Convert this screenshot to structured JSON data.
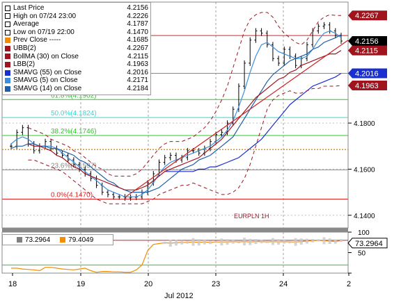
{
  "chart_data": [
    {
      "type": "line",
      "instrument": "EURPLN 1H",
      "xlabel": "Jul 2012",
      "x_tick_labels": [
        "18",
        "19",
        "20",
        "23",
        "24",
        "2"
      ],
      "y_tick_labels": [
        "4.1800",
        "4.1600",
        "4.1400"
      ],
      "ylim": [
        4.1345,
        4.2325
      ],
      "legend": [
        {
          "label": "Last Price",
          "value": "4.2156",
          "color": "#000000"
        },
        {
          "label": "High on 07/24 23:00",
          "value": "4.2226",
          "color": "#000000"
        },
        {
          "label": "Average",
          "value": "4.1787",
          "color": "#000000"
        },
        {
          "label": "Low on 07/19 22:00",
          "value": "4.1470",
          "color": "#000000"
        },
        {
          "label": "Prev Close -----",
          "value": "4.1685",
          "color": "#f28c00"
        },
        {
          "label": "UBB(2)",
          "value": "4.2267",
          "color": "#a0141e"
        },
        {
          "label": "BollMA (30) on Close",
          "value": "4.2115",
          "color": "#a0141e"
        },
        {
          "label": "LBB(2)",
          "value": "4.1963",
          "color": "#a0141e"
        },
        {
          "label": "SMAVG (55) on Close",
          "value": "4.2016",
          "color": "#1a2fd0"
        },
        {
          "label": "SMAVG (5) on Close",
          "value": "4.2171",
          "color": "#3a8fe0"
        },
        {
          "label": "SMAVG (14) on Close",
          "value": "4.2184",
          "color": "#1f5fa8"
        }
      ],
      "fib_levels": [
        {
          "label": "0.0%(4.1470)",
          "value": 4.147,
          "color": "#e02020"
        },
        {
          "label": "23.6%(4.1597)",
          "value": 4.1597,
          "color": "#888888"
        },
        {
          "label": "38.2%(4.1746)",
          "value": 4.1746,
          "color": "#2cc52c"
        },
        {
          "label": "50.0%(4.1824)",
          "value": 4.1824,
          "color": "#33d7d7"
        },
        {
          "label": "61.8%(4.1902)",
          "value": 4.1902,
          "color": "#2cc52c"
        },
        {
          "label": "76.4%(4.2016)",
          "value": 4.2016,
          "color": "#888888"
        },
        {
          "label": "100.0%(4.2180)",
          "value": 4.218,
          "color": "#e02020"
        }
      ],
      "prev_close": 4.1685,
      "right_tags": [
        {
          "value": "4.2267",
          "bg": "#a0141e",
          "fg": "#ffffff"
        },
        {
          "value": "4.2156",
          "bg": "#000000",
          "fg": "#ffffff"
        },
        {
          "value": "4.2115",
          "bg": "#a0141e",
          "fg": "#ffffff"
        },
        {
          "value": "4.2016",
          "bg": "#1a2fd0",
          "fg": "#ffffff"
        },
        {
          "value": "4.1963",
          "bg": "#a0141e",
          "fg": "#ffffff"
        }
      ],
      "series": [
        {
          "name": "Last Price",
          "values": [
            4.17,
            4.176,
            4.178,
            4.171,
            4.168,
            4.17,
            4.172,
            4.169,
            4.167,
            4.166,
            4.164,
            4.162,
            4.16,
            4.158,
            4.156,
            4.153,
            4.15,
            4.149,
            4.148,
            4.148,
            4.1475,
            4.1478,
            4.148,
            4.15,
            4.154,
            4.158,
            4.163,
            4.165,
            4.166,
            4.164,
            4.165,
            4.168,
            4.168,
            4.167,
            4.169,
            4.172,
            4.175,
            4.176,
            4.18,
            4.186,
            4.196,
            4.206,
            4.216,
            4.22,
            4.219,
            4.214,
            4.208,
            4.206,
            4.212,
            4.209,
            4.205,
            4.208,
            4.214,
            4.22,
            4.222,
            4.2226,
            4.22,
            4.218,
            4.2156
          ]
        },
        {
          "name": "SMAVG (5) on Close",
          "values": [
            4.171,
            4.173,
            4.174,
            4.173,
            4.171,
            4.17,
            4.17,
            4.17,
            4.169,
            4.167,
            4.165,
            4.163,
            4.161,
            4.159,
            4.157,
            4.155,
            4.153,
            4.151,
            4.15,
            4.149,
            4.148,
            4.148,
            4.148,
            4.149,
            4.151,
            4.154,
            4.158,
            4.161,
            4.163,
            4.164,
            4.165,
            4.166,
            4.167,
            4.168,
            4.169,
            4.17,
            4.172,
            4.174,
            4.177,
            4.181,
            4.187,
            4.194,
            4.202,
            4.209,
            4.214,
            4.215,
            4.213,
            4.211,
            4.21,
            4.209,
            4.208,
            4.208,
            4.209,
            4.212,
            4.216,
            4.219,
            4.22,
            4.219,
            4.2171
          ]
        },
        {
          "name": "SMAVG (14) on Close",
          "values": [
            4.169,
            4.17,
            4.17,
            4.171,
            4.171,
            4.17,
            4.17,
            4.169,
            4.169,
            4.168,
            4.167,
            4.166,
            4.164,
            4.163,
            4.161,
            4.159,
            4.157,
            4.155,
            4.154,
            4.152,
            4.151,
            4.15,
            4.15,
            4.15,
            4.15,
            4.151,
            4.152,
            4.154,
            4.156,
            4.158,
            4.16,
            4.161,
            4.162,
            4.164,
            4.165,
            4.166,
            4.168,
            4.17,
            4.172,
            4.174,
            4.178,
            4.182,
            4.186,
            4.19,
            4.194,
            4.198,
            4.201,
            4.203,
            4.205,
            4.207,
            4.208,
            4.209,
            4.21,
            4.212,
            4.213,
            4.215,
            4.216,
            4.217,
            4.2184
          ]
        },
        {
          "name": "SMAVG (55) on Close",
          "values": [
            null,
            null,
            null,
            null,
            null,
            null,
            null,
            null,
            null,
            null,
            null,
            null,
            null,
            null,
            null,
            null,
            null,
            null,
            null,
            null,
            null,
            null,
            null,
            null,
            null,
            null,
            null,
            4.159,
            4.159,
            4.159,
            4.159,
            4.159,
            4.159,
            4.16,
            4.16,
            4.161,
            4.161,
            4.162,
            4.163,
            4.164,
            4.165,
            4.167,
            4.169,
            4.171,
            4.173,
            4.176,
            4.179,
            4.182,
            4.185,
            4.188,
            4.19,
            4.192,
            4.194,
            4.196,
            4.197,
            4.198,
            4.199,
            4.2,
            4.2016
          ]
        },
        {
          "name": "BollMA (30) on Close",
          "values": [
            null,
            null,
            null,
            4.171,
            4.17,
            4.17,
            4.169,
            4.168,
            4.166,
            4.165,
            4.163,
            4.161,
            4.16,
            4.158,
            4.157,
            4.156,
            4.155,
            4.154,
            4.153,
            4.152,
            4.151,
            4.151,
            4.151,
            4.152,
            4.153,
            4.155,
            4.157,
            4.159,
            4.16,
            4.161,
            4.162,
            4.163,
            4.164,
            4.165,
            4.167,
            4.169,
            4.171,
            4.173,
            4.176,
            4.179,
            4.182,
            4.185,
            4.188,
            4.191,
            4.193,
            4.195,
            4.197,
            4.199,
            4.2,
            4.202,
            4.203,
            4.205,
            4.206,
            4.207,
            4.208,
            4.209,
            4.21,
            4.21,
            4.2115
          ]
        },
        {
          "name": "UBB(2)",
          "values": [
            null,
            null,
            null,
            4.178,
            4.177,
            4.176,
            4.175,
            4.173,
            4.172,
            4.171,
            4.17,
            4.168,
            4.167,
            4.165,
            4.163,
            4.161,
            4.16,
            4.158,
            4.157,
            4.157,
            4.157,
            4.157,
            4.158,
            4.16,
            4.163,
            4.166,
            4.169,
            4.171,
            4.172,
            4.172,
            4.172,
            4.173,
            4.174,
            4.176,
            4.178,
            4.181,
            4.185,
            4.19,
            4.196,
            4.204,
            4.212,
            4.22,
            4.225,
            4.227,
            4.228,
            4.228,
            4.226,
            4.222,
            4.219,
            4.217,
            4.215,
            4.214,
            4.216,
            4.22,
            4.224,
            4.226,
            4.227,
            4.2267,
            4.2267
          ]
        },
        {
          "name": "LBB(2)",
          "values": [
            null,
            null,
            null,
            4.164,
            4.164,
            4.163,
            4.162,
            4.161,
            4.16,
            4.159,
            4.157,
            4.155,
            4.153,
            4.151,
            4.149,
            4.147,
            4.146,
            4.145,
            4.145,
            4.145,
            4.145,
            4.145,
            4.145,
            4.145,
            4.146,
            4.147,
            4.149,
            4.15,
            4.151,
            4.152,
            4.153,
            4.153,
            4.154,
            4.153,
            4.152,
            4.151,
            4.15,
            4.149,
            4.149,
            4.15,
            4.152,
            4.156,
            4.162,
            4.17,
            4.178,
            4.186,
            4.19,
            4.192,
            4.193,
            4.194,
            4.193,
            4.193,
            4.194,
            4.195,
            4.195,
            4.196,
            4.196,
            4.196,
            4.1963
          ]
        }
      ]
    },
    {
      "type": "line",
      "panel": "indicator",
      "y_tick_labels": [
        "100",
        "50",
        "0"
      ],
      "ylim": [
        0,
        100
      ],
      "reference_lines": [
        80,
        20
      ],
      "legend": [
        {
          "value": "73.2964",
          "color": "#808080"
        },
        {
          "value": "79.4049",
          "color": "#f28c00"
        }
      ],
      "right_tag": {
        "value": "73.2964",
        "bg": "#ffffff",
        "fg": "#000000"
      },
      "series": [
        {
          "name": "",
          "color": "#f28c00",
          "values": [
            null,
            null,
            null,
            null,
            null,
            null,
            null,
            null,
            null,
            null,
            null,
            null,
            null,
            null,
            null,
            null,
            null,
            null,
            null,
            null,
            null,
            null,
            null,
            null,
            null,
            null,
            null,
            null,
            null,
            null,
            null,
            null,
            null,
            null,
            null,
            null,
            null,
            null,
            null,
            null,
            null,
            null,
            null,
            null,
            null,
            null,
            null,
            null,
            null,
            null,
            null,
            null,
            null,
            null,
            null,
            null,
            null,
            null,
            null
          ]
        }
      ],
      "k_values": [
        12,
        12,
        10,
        9,
        8,
        6,
        14,
        14,
        12,
        10,
        9,
        8,
        10,
        12,
        6,
        2,
        4,
        4,
        3,
        3,
        2,
        2,
        8,
        20,
        55,
        70,
        72,
        74,
        73,
        74,
        75,
        75,
        76,
        75,
        76,
        75,
        76,
        76,
        76,
        77,
        76,
        77,
        76,
        77,
        77,
        76,
        77,
        76,
        77,
        76,
        76,
        77,
        78,
        79,
        80,
        79,
        78,
        77,
        79.4
      ],
      "d_values": [
        null,
        null,
        null,
        null,
        null,
        null,
        null,
        null,
        null,
        null,
        null,
        null,
        null,
        null,
        null,
        null,
        null,
        null,
        null,
        null,
        null,
        null,
        null,
        null,
        null,
        null,
        null,
        null,
        null,
        null,
        null,
        null,
        null,
        null,
        null,
        null,
        null,
        null,
        null,
        null,
        null,
        null,
        null,
        null,
        null,
        null,
        null,
        null,
        null,
        null,
        null,
        null,
        null,
        null,
        null,
        null,
        null,
        null,
        null
      ]
    }
  ]
}
